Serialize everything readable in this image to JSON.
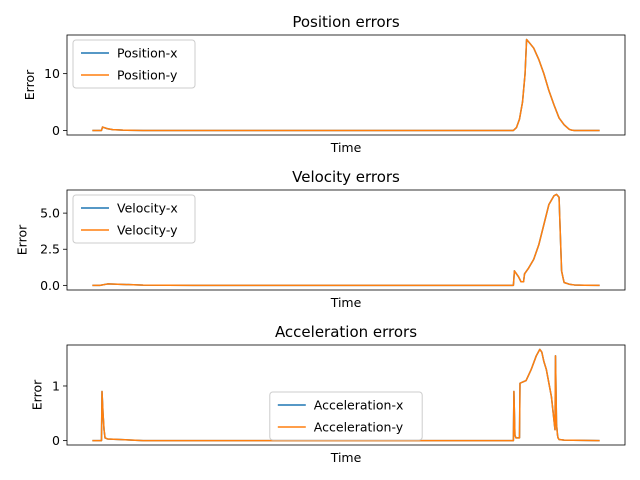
{
  "colors": {
    "series_x": "#1f77b4",
    "series_y": "#ff7f0e",
    "axes": "#000000",
    "background": "#ffffff"
  },
  "chart_data": [
    {
      "type": "line",
      "title": "Position errors",
      "xlabel": "Time",
      "ylabel": "Error",
      "xlim": [
        -0.05,
        1.05
      ],
      "ylim": [
        -0.8,
        16.8
      ],
      "yticks": [
        0,
        10
      ],
      "ytick_labels": [
        "0",
        "10"
      ],
      "xticks_shown": false,
      "grid": false,
      "legend": "upper left",
      "x": [
        0,
        0.018,
        0.02,
        0.03,
        0.04,
        0.06,
        0.1,
        0.5,
        0.83,
        0.836,
        0.842,
        0.848,
        0.853,
        0.856,
        0.86,
        0.87,
        0.88,
        0.89,
        0.9,
        0.91,
        0.92,
        0.93,
        0.94,
        0.945,
        0.95,
        0.953,
        1.0
      ],
      "series": [
        {
          "name": "Position-x",
          "values": [
            0,
            0,
            0.6,
            0.3,
            0.15,
            0.05,
            0,
            0,
            0,
            0.5,
            2,
            5,
            10,
            16,
            15.6,
            14.5,
            12.5,
            10,
            7,
            4.5,
            2.2,
            1.0,
            0.2,
            0.05,
            0,
            0,
            0
          ]
        },
        {
          "name": "Position-y",
          "values": [
            0,
            0,
            0.6,
            0.3,
            0.15,
            0.05,
            0,
            0,
            0,
            0.5,
            2,
            5,
            10,
            16,
            15.6,
            14.5,
            12.5,
            10,
            7,
            4.5,
            2.2,
            1.0,
            0.2,
            0.05,
            0,
            0,
            0
          ]
        }
      ]
    },
    {
      "type": "line",
      "title": "Velocity errors",
      "xlabel": "Time",
      "ylabel": "Error",
      "xlim": [
        -0.05,
        1.05
      ],
      "ylim": [
        -0.32,
        6.6
      ],
      "yticks": [
        0,
        2.5,
        5
      ],
      "ytick_labels": [
        "0.0",
        "2.5",
        "5.0"
      ],
      "xticks_shown": false,
      "grid": false,
      "legend": "upper left",
      "x": [
        0,
        0.015,
        0.03,
        0.05,
        0.1,
        0.2,
        0.5,
        0.83,
        0.832,
        0.84,
        0.845,
        0.85,
        0.852,
        0.86,
        0.87,
        0.88,
        0.89,
        0.9,
        0.91,
        0.915,
        0.92,
        0.925,
        0.928,
        0.93,
        0.94,
        0.95,
        0.97,
        1.0
      ],
      "series": [
        {
          "name": "Velocity-x",
          "values": [
            0,
            0,
            0.1,
            0.08,
            0.02,
            0,
            0,
            0,
            1.0,
            0.6,
            0.25,
            0.25,
            0.8,
            1.2,
            1.8,
            2.8,
            4.2,
            5.6,
            6.2,
            6.3,
            6.1,
            1.0,
            0.5,
            0.2,
            0.08,
            0.03,
            0.01,
            0
          ]
        },
        {
          "name": "Velocity-y",
          "values": [
            0,
            0,
            0.1,
            0.08,
            0.02,
            0,
            0,
            0,
            1.0,
            0.6,
            0.25,
            0.25,
            0.8,
            1.2,
            1.8,
            2.8,
            4.2,
            5.6,
            6.2,
            6.3,
            6.1,
            1.0,
            0.5,
            0.2,
            0.08,
            0.03,
            0.01,
            0
          ]
        }
      ]
    },
    {
      "type": "line",
      "title": "Acceleration errors",
      "xlabel": "Time",
      "ylabel": "Error",
      "xlim": [
        -0.05,
        1.05
      ],
      "ylim": [
        -0.08,
        1.75
      ],
      "yticks": [
        0,
        1
      ],
      "ytick_labels": [
        "0",
        "1"
      ],
      "xticks_shown": false,
      "grid": false,
      "legend": "lower center",
      "x": [
        0,
        0.018,
        0.019,
        0.021,
        0.023,
        0.025,
        0.03,
        0.1,
        0.5,
        0.83,
        0.831,
        0.833,
        0.835,
        0.837,
        0.84,
        0.842,
        0.843,
        0.855,
        0.865,
        0.875,
        0.882,
        0.886,
        0.89,
        0.895,
        0.905,
        0.912,
        0.913,
        0.915,
        0.917,
        0.918,
        0.92,
        0.93,
        1.0
      ],
      "series": [
        {
          "name": "Acceleration-x",
          "values": [
            0,
            0,
            0.9,
            0.5,
            0.2,
            0.05,
            0.03,
            0,
            0,
            0,
            0.9,
            0.1,
            0.05,
            0.05,
            0.05,
            0.05,
            1.05,
            1.1,
            1.3,
            1.55,
            1.67,
            1.62,
            1.45,
            1.3,
            0.8,
            0.2,
            1.55,
            0.3,
            0.1,
            0.05,
            0.02,
            0.01,
            0
          ]
        },
        {
          "name": "Acceleration-y",
          "values": [
            0,
            0,
            0.9,
            0.5,
            0.2,
            0.05,
            0.03,
            0,
            0,
            0,
            0.9,
            0.1,
            0.05,
            0.05,
            0.05,
            0.05,
            1.05,
            1.1,
            1.3,
            1.55,
            1.67,
            1.62,
            1.45,
            1.3,
            0.8,
            0.2,
            1.55,
            0.3,
            0.1,
            0.05,
            0.02,
            0.01,
            0
          ]
        }
      ]
    }
  ]
}
